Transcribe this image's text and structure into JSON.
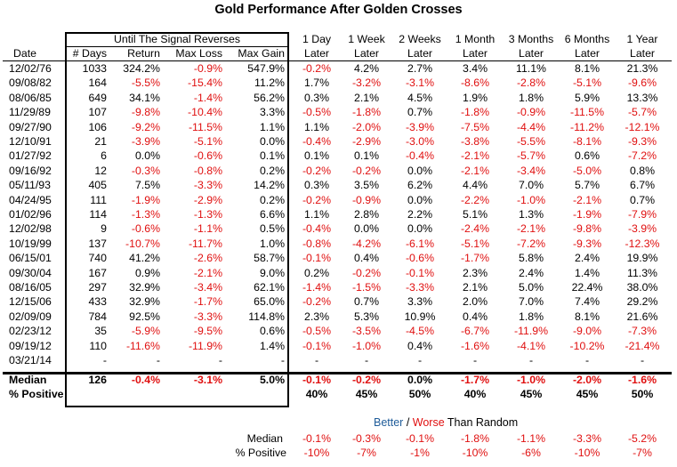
{
  "title": "Gold Performance After Golden Crosses",
  "colors": {
    "negative": "#e01010",
    "better": "#1f5c99",
    "text": "#000000"
  },
  "group_header": "Until The Signal Reverses",
  "headers": {
    "date": "Date",
    "days": "# Days",
    "ret": "Return",
    "maxloss": "Max Loss",
    "maxgain": "Max Gain",
    "periods": [
      {
        "top": "1 Day",
        "bottom": "Later"
      },
      {
        "top": "1 Week",
        "bottom": "Later"
      },
      {
        "top": "2 Weeks",
        "bottom": "Later"
      },
      {
        "top": "1 Month",
        "bottom": "Later"
      },
      {
        "top": "3 Months",
        "bottom": "Later"
      },
      {
        "top": "6 Months",
        "bottom": "Later"
      },
      {
        "top": "1 Year",
        "bottom": "Later"
      }
    ]
  },
  "rows": [
    [
      "12/02/76",
      "1033",
      "324.2%",
      "-0.9%",
      "547.9%",
      "-0.2%",
      "4.2%",
      "2.7%",
      "3.4%",
      "11.1%",
      "8.1%",
      "21.3%"
    ],
    [
      "09/08/82",
      "164",
      "-5.5%",
      "-15.4%",
      "11.2%",
      "1.7%",
      "-3.2%",
      "-3.1%",
      "-8.6%",
      "-2.8%",
      "-5.1%",
      "-9.6%"
    ],
    [
      "08/06/85",
      "649",
      "34.1%",
      "-1.4%",
      "56.2%",
      "0.3%",
      "2.1%",
      "4.5%",
      "1.9%",
      "1.8%",
      "5.9%",
      "13.3%"
    ],
    [
      "11/29/89",
      "107",
      "-9.8%",
      "-10.4%",
      "3.3%",
      "-0.5%",
      "-1.8%",
      "0.7%",
      "-1.8%",
      "-0.9%",
      "-11.5%",
      "-5.7%"
    ],
    [
      "09/27/90",
      "106",
      "-9.2%",
      "-11.5%",
      "1.1%",
      "1.1%",
      "-2.0%",
      "-3.9%",
      "-7.5%",
      "-4.4%",
      "-11.2%",
      "-12.1%"
    ],
    [
      "12/10/91",
      "21",
      "-3.9%",
      "-5.1%",
      "0.0%",
      "-0.4%",
      "-2.9%",
      "-3.0%",
      "-3.8%",
      "-5.5%",
      "-8.1%",
      "-9.3%"
    ],
    [
      "01/27/92",
      "6",
      "0.0%",
      "-0.6%",
      "0.1%",
      "0.1%",
      "0.1%",
      "-0.4%",
      "-2.1%",
      "-5.7%",
      "0.6%",
      "-7.2%"
    ],
    [
      "09/16/92",
      "12",
      "-0.3%",
      "-0.8%",
      "0.2%",
      "-0.2%",
      "-0.2%",
      "0.0%",
      "-2.1%",
      "-3.4%",
      "-5.0%",
      "0.8%"
    ],
    [
      "05/11/93",
      "405",
      "7.5%",
      "-3.3%",
      "14.2%",
      "0.3%",
      "3.5%",
      "6.2%",
      "4.4%",
      "7.0%",
      "5.7%",
      "6.7%"
    ],
    [
      "04/24/95",
      "111",
      "-1.9%",
      "-2.9%",
      "0.2%",
      "-0.2%",
      "-0.9%",
      "0.0%",
      "-2.2%",
      "-1.0%",
      "-2.1%",
      "0.7%"
    ],
    [
      "01/02/96",
      "114",
      "-1.3%",
      "-1.3%",
      "6.6%",
      "1.1%",
      "2.8%",
      "2.2%",
      "5.1%",
      "1.3%",
      "-1.9%",
      "-7.9%"
    ],
    [
      "12/02/98",
      "9",
      "-0.6%",
      "-1.1%",
      "0.5%",
      "-0.4%",
      "0.0%",
      "0.0%",
      "-2.4%",
      "-2.1%",
      "-9.8%",
      "-3.9%"
    ],
    [
      "10/19/99",
      "137",
      "-10.7%",
      "-11.7%",
      "1.0%",
      "-0.8%",
      "-4.2%",
      "-6.1%",
      "-5.1%",
      "-7.2%",
      "-9.3%",
      "-12.3%"
    ],
    [
      "06/15/01",
      "740",
      "41.2%",
      "-2.6%",
      "58.7%",
      "-0.1%",
      "0.4%",
      "-0.6%",
      "-1.7%",
      "5.8%",
      "2.4%",
      "19.9%"
    ],
    [
      "09/30/04",
      "167",
      "0.9%",
      "-2.1%",
      "9.0%",
      "0.2%",
      "-0.2%",
      "-0.1%",
      "2.3%",
      "2.4%",
      "1.4%",
      "11.3%"
    ],
    [
      "08/16/05",
      "297",
      "32.9%",
      "-3.4%",
      "62.1%",
      "-1.4%",
      "-1.5%",
      "-3.3%",
      "2.1%",
      "5.0%",
      "22.4%",
      "38.0%"
    ],
    [
      "12/15/06",
      "433",
      "32.9%",
      "-1.7%",
      "65.0%",
      "-0.2%",
      "0.7%",
      "3.3%",
      "2.0%",
      "7.0%",
      "7.4%",
      "29.2%"
    ],
    [
      "02/09/09",
      "784",
      "92.5%",
      "-3.3%",
      "114.8%",
      "2.3%",
      "5.3%",
      "10.9%",
      "0.4%",
      "1.8%",
      "8.1%",
      "21.6%"
    ],
    [
      "02/23/12",
      "35",
      "-5.9%",
      "-9.5%",
      "0.6%",
      "-0.5%",
      "-3.5%",
      "-4.5%",
      "-6.7%",
      "-11.9%",
      "-9.0%",
      "-7.3%"
    ],
    [
      "09/19/12",
      "110",
      "-11.6%",
      "-11.9%",
      "1.4%",
      "-0.1%",
      "-1.0%",
      "0.4%",
      "-1.6%",
      "-4.1%",
      "-10.2%",
      "-21.4%"
    ],
    [
      "03/21/14",
      "-",
      "-",
      "-",
      "-",
      "-",
      "-",
      "-",
      "-",
      "-",
      "-",
      "-"
    ]
  ],
  "summary": {
    "median_label": "Median",
    "median": [
      "126",
      "-0.4%",
      "-3.1%",
      "5.0%",
      "-0.1%",
      "-0.2%",
      "0.0%",
      "-1.7%",
      "-1.0%",
      "-2.0%",
      "-1.6%"
    ],
    "positive_label": "% Positive",
    "positive": [
      "40%",
      "45%",
      "50%",
      "40%",
      "45%",
      "45%",
      "50%"
    ]
  },
  "legend": {
    "better": "Better",
    "sep": " / ",
    "worse": "Worse",
    "rest": " Than Random"
  },
  "random": {
    "median_label": "Median",
    "median": [
      "-0.1%",
      "-0.3%",
      "-0.1%",
      "-1.8%",
      "-1.1%",
      "-3.3%",
      "-5.2%"
    ],
    "positive_label": "% Positive",
    "positive": [
      "-10%",
      "-7%",
      "-1%",
      "-10%",
      "-6%",
      "-10%",
      "-7%"
    ]
  }
}
